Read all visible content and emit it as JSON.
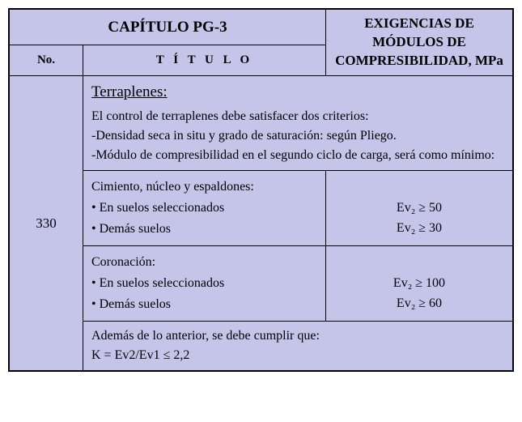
{
  "colors": {
    "background": "#c5c5ea",
    "border": "#000000",
    "text": "#000000"
  },
  "header": {
    "chapter": "CAPÍTULO PG-3",
    "no_label": "No.",
    "title_label": "T Í T U L O",
    "requirements_label": "EXIGENCIAS DE MÓDULOS DE COMPRESIBILIDAD, MPa"
  },
  "row": {
    "number": "330",
    "intro": {
      "heading": "Terraplenes:",
      "line1": "El control de terraplenes debe satisfacer dos criterios:",
      "line2": "-Densidad seca in situ y grado de saturación: según Pliego.",
      "line3": "-Módulo de compresibilidad en el segundo ciclo de carga, será como mínimo:"
    },
    "section1": {
      "title": "Cimiento, núcleo y espaldones:",
      "item1": "• En suelos seleccionados",
      "item2": "• Demás suelos",
      "req1": "Ev₂ ≥ 50",
      "req2": "Ev₂ ≥ 30"
    },
    "section2": {
      "title": "Coronación:",
      "item1": "• En suelos seleccionados",
      "item2": "• Demás suelos",
      "req1": "Ev₂ ≥ 100",
      "req2": "Ev₂ ≥ 60"
    },
    "footer": {
      "line1": "Además de lo anterior, se debe cumplir que:",
      "line2": "K = Ev2/Ev1 ≤ 2,2"
    }
  }
}
